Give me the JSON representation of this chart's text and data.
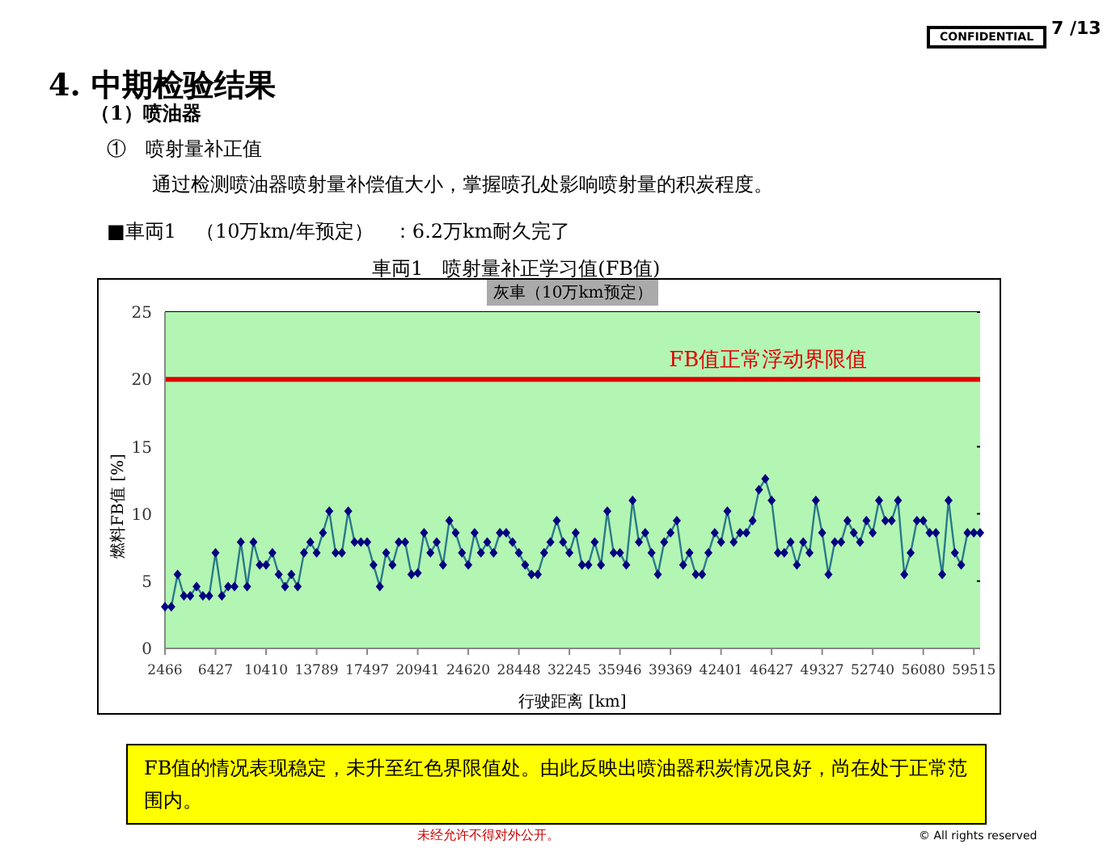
{
  "chart_data": {
    "type": "line",
    "title": "車両1　喷射量补正学习值(FB值)",
    "subtitle": "灰車（10万km预定）",
    "xlabel": "行驶距离 [km]",
    "ylabel": "燃料FB值 [%]",
    "annotations": [
      "CONFIDENTIAL",
      "7 /13",
      "4.  中期检验结果",
      "（1）喷油器",
      "①　喷射量补正值",
      "通过检测喷油器喷射量补偿值大小，掌握喷孔处影响喷射量的积炭程度。",
      "■車両1　（10万km/年预定）　：6.2万km耐久完了",
      "FB值的情况表现稳定，未升至红色界限值处。由此反映出喷油器积炭情况良好，尚在处于正常范围内。",
      "未经允许不得对外公开。",
      "© All rights reserved"
    ],
    "categories": [
      "2466",
      null,
      null,
      null,
      null,
      null,
      null,
      null,
      "6427",
      null,
      null,
      null,
      null,
      null,
      null,
      null,
      "10410",
      null,
      null,
      null,
      null,
      null,
      null,
      null,
      "13789",
      null,
      null,
      null,
      null,
      null,
      null,
      null,
      "17497",
      null,
      null,
      null,
      null,
      null,
      null,
      null,
      "20941",
      null,
      null,
      null,
      null,
      null,
      null,
      null,
      "24620",
      null,
      null,
      null,
      null,
      null,
      null,
      null,
      "28448",
      null,
      null,
      null,
      null,
      null,
      null,
      null,
      "32245",
      null,
      null,
      null,
      null,
      null,
      null,
      null,
      "35946",
      null,
      null,
      null,
      null,
      null,
      null,
      null,
      "39369",
      null,
      null,
      null,
      null,
      null,
      null,
      null,
      "42401",
      null,
      null,
      null,
      null,
      null,
      null,
      null,
      "46427",
      null,
      null,
      null,
      null,
      null,
      null,
      null,
      "49327",
      null,
      null,
      null,
      null,
      null,
      null,
      null,
      "52740",
      null,
      null,
      null,
      null,
      null,
      null,
      null,
      "56080",
      null,
      null,
      null,
      null,
      null,
      null,
      null,
      "59515",
      null
    ],
    "series": [
      {
        "color": "#000080",
        "values": [
          3.1,
          3.1,
          5.5,
          3.9,
          3.9,
          4.6,
          3.9,
          3.9,
          7.1,
          3.9,
          4.6,
          4.6,
          7.9,
          4.6,
          7.9,
          6.2,
          6.2,
          7.1,
          5.5,
          4.6,
          5.5,
          4.6,
          7.1,
          7.9,
          7.1,
          8.6,
          10.2,
          7.1,
          7.1,
          10.2,
          7.9,
          7.9,
          7.9,
          6.2,
          4.6,
          7.1,
          6.2,
          7.9,
          7.9,
          5.5,
          5.6,
          8.6,
          7.1,
          7.9,
          6.2,
          9.5,
          8.6,
          7.1,
          6.2,
          8.6,
          7.1,
          7.9,
          7.1,
          8.6,
          8.6,
          7.9,
          7.1,
          6.2,
          5.5,
          5.5,
          7.1,
          7.9,
          9.5,
          7.9,
          7.1,
          8.6,
          6.2,
          6.2,
          7.9,
          6.2,
          10.2,
          7.1,
          7.1,
          6.2,
          11.0,
          7.9,
          8.6,
          7.1,
          5.5,
          7.9,
          8.6,
          9.5,
          6.2,
          7.1,
          5.5,
          5.5,
          7.1,
          8.6,
          7.9,
          10.2,
          7.9,
          8.6,
          8.6,
          9.5,
          11.8,
          12.6,
          11.0,
          7.1,
          7.1,
          7.9,
          6.2,
          7.9,
          7.1,
          11.0,
          8.6,
          5.5,
          7.9,
          7.9,
          9.5,
          8.6,
          7.9,
          9.5,
          8.6,
          11.0,
          9.5,
          9.5,
          11.0,
          5.5,
          7.1,
          9.5,
          9.5,
          8.6,
          8.6,
          5.5,
          11.0,
          7.1,
          6.2,
          8.6,
          8.6,
          8.6
        ]
      }
    ],
    "ylim": [
      0,
      25
    ],
    "yticks": [
      0,
      5,
      10,
      15,
      20,
      25
    ],
    "grid": "y",
    "legend": false,
    "marker": "diamond",
    "line_style": "solid",
    "ref_lines": [
      {
        "axis": "y",
        "value": 20,
        "label": "FB值正常浮动界限值",
        "color": "#e00000"
      }
    ]
  }
}
